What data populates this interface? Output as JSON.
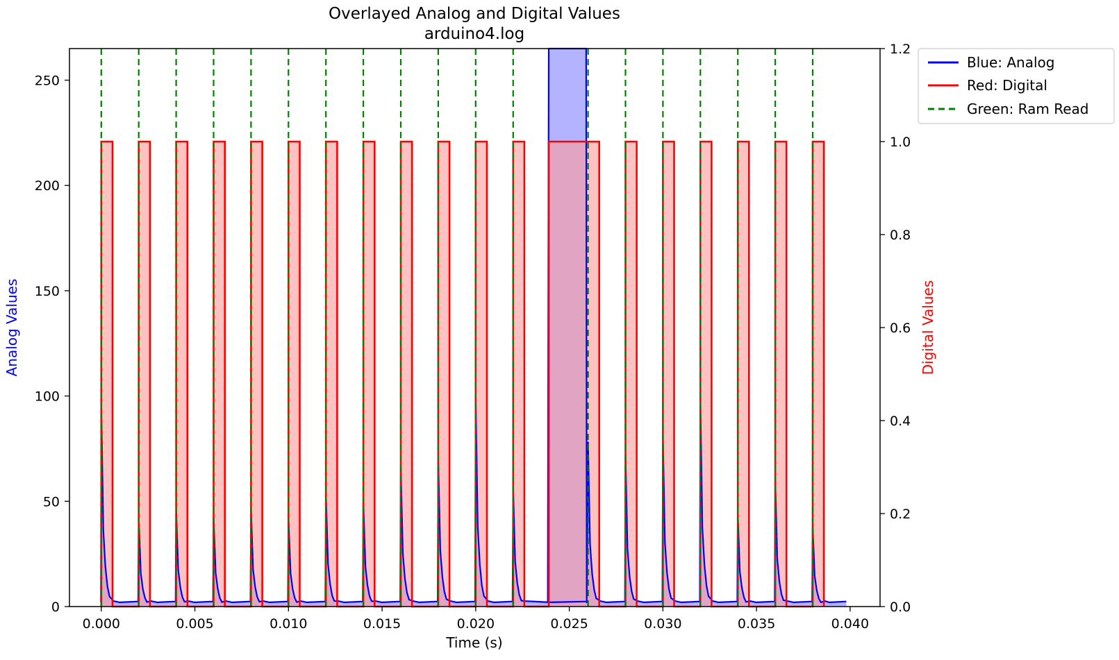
{
  "chart_data": {
    "type": "line",
    "title": "Overlayed Analog and Digital Values",
    "subtitle": "arduino4.log",
    "xlabel": "Time (s)",
    "ylabel_left": "Analog Values",
    "ylabel_right": "Digital Values",
    "xlim": [
      -0.0017,
      0.0416
    ],
    "ylim_left": [
      0,
      265
    ],
    "ylim_right": [
      0,
      1.2
    ],
    "x_ticks": [
      {
        "value": 0.0,
        "label": "0.000"
      },
      {
        "value": 0.005,
        "label": "0.005"
      },
      {
        "value": 0.01,
        "label": "0.010"
      },
      {
        "value": 0.015,
        "label": "0.015"
      },
      {
        "value": 0.02,
        "label": "0.020"
      },
      {
        "value": 0.025,
        "label": "0.025"
      },
      {
        "value": 0.03,
        "label": "0.030"
      },
      {
        "value": 0.035,
        "label": "0.035"
      },
      {
        "value": 0.04,
        "label": "0.040"
      }
    ],
    "y_left_ticks": [
      {
        "value": 0,
        "label": "0"
      },
      {
        "value": 50,
        "label": "50"
      },
      {
        "value": 100,
        "label": "100"
      },
      {
        "value": 150,
        "label": "150"
      },
      {
        "value": 200,
        "label": "200"
      },
      {
        "value": 250,
        "label": "250"
      }
    ],
    "y_right_ticks": [
      {
        "value": 0.0,
        "label": "0.0"
      },
      {
        "value": 0.2,
        "label": "0.2"
      },
      {
        "value": 0.4,
        "label": "0.4"
      },
      {
        "value": 0.6,
        "label": "0.6"
      },
      {
        "value": 0.8,
        "label": "0.8"
      },
      {
        "value": 1.0,
        "label": "1.0"
      },
      {
        "value": 1.2,
        "label": "1.2"
      }
    ],
    "grid": false,
    "legend_position": "outside-top-right",
    "series": [
      {
        "name": "Blue: Analog",
        "axis": "left",
        "color": "#0000ff",
        "fill_color": "#8080ff",
        "baseline": 2,
        "spikes": [
          {
            "t": 0.0,
            "peak": 95
          },
          {
            "t": 0.002,
            "peak": 42
          },
          {
            "t": 0.004,
            "peak": 46
          },
          {
            "t": 0.006,
            "peak": 42
          },
          {
            "t": 0.008,
            "peak": 46
          },
          {
            "t": 0.01,
            "peak": 42
          },
          {
            "t": 0.012,
            "peak": 54
          },
          {
            "t": 0.014,
            "peak": 50
          },
          {
            "t": 0.016,
            "peak": 66
          },
          {
            "t": 0.018,
            "peak": 70
          },
          {
            "t": 0.02,
            "peak": 100
          },
          {
            "t": 0.022,
            "peak": 56
          },
          {
            "t": 0.026,
            "peak": 78
          },
          {
            "t": 0.028,
            "peak": 72
          },
          {
            "t": 0.03,
            "peak": 80
          },
          {
            "t": 0.032,
            "peak": 98
          },
          {
            "t": 0.034,
            "peak": 44
          },
          {
            "t": 0.036,
            "peak": 60
          },
          {
            "t": 0.038,
            "peak": 38
          }
        ],
        "block": {
          "start": 0.0239,
          "end": 0.0259,
          "value": 265
        },
        "end_time": 0.0398
      },
      {
        "name": "Red: Digital",
        "axis": "right",
        "color": "#ff0000",
        "fill_color": "#ff9999",
        "high": 1.0,
        "pulses": [
          [
            0.0,
            0.0006
          ],
          [
            0.002,
            0.0026
          ],
          [
            0.004,
            0.0046
          ],
          [
            0.006,
            0.0066
          ],
          [
            0.008,
            0.0086
          ],
          [
            0.01,
            0.0106
          ],
          [
            0.012,
            0.0126
          ],
          [
            0.014,
            0.0146
          ],
          [
            0.016,
            0.0166
          ],
          [
            0.018,
            0.0186
          ],
          [
            0.02,
            0.0206
          ],
          [
            0.022,
            0.0226
          ],
          [
            0.0239,
            0.0266
          ],
          [
            0.028,
            0.0286
          ],
          [
            0.03,
            0.0306
          ],
          [
            0.032,
            0.0326
          ],
          [
            0.034,
            0.0346
          ],
          [
            0.036,
            0.0366
          ],
          [
            0.038,
            0.0386
          ]
        ]
      },
      {
        "name": "Green: Ram Read",
        "axis": "left",
        "color": "#008000",
        "style": "dashed",
        "times": [
          0.0,
          0.002,
          0.004,
          0.006,
          0.008,
          0.01,
          0.012,
          0.014,
          0.016,
          0.018,
          0.02,
          0.022,
          0.026,
          0.028,
          0.03,
          0.032,
          0.034,
          0.036,
          0.038
        ]
      }
    ]
  }
}
